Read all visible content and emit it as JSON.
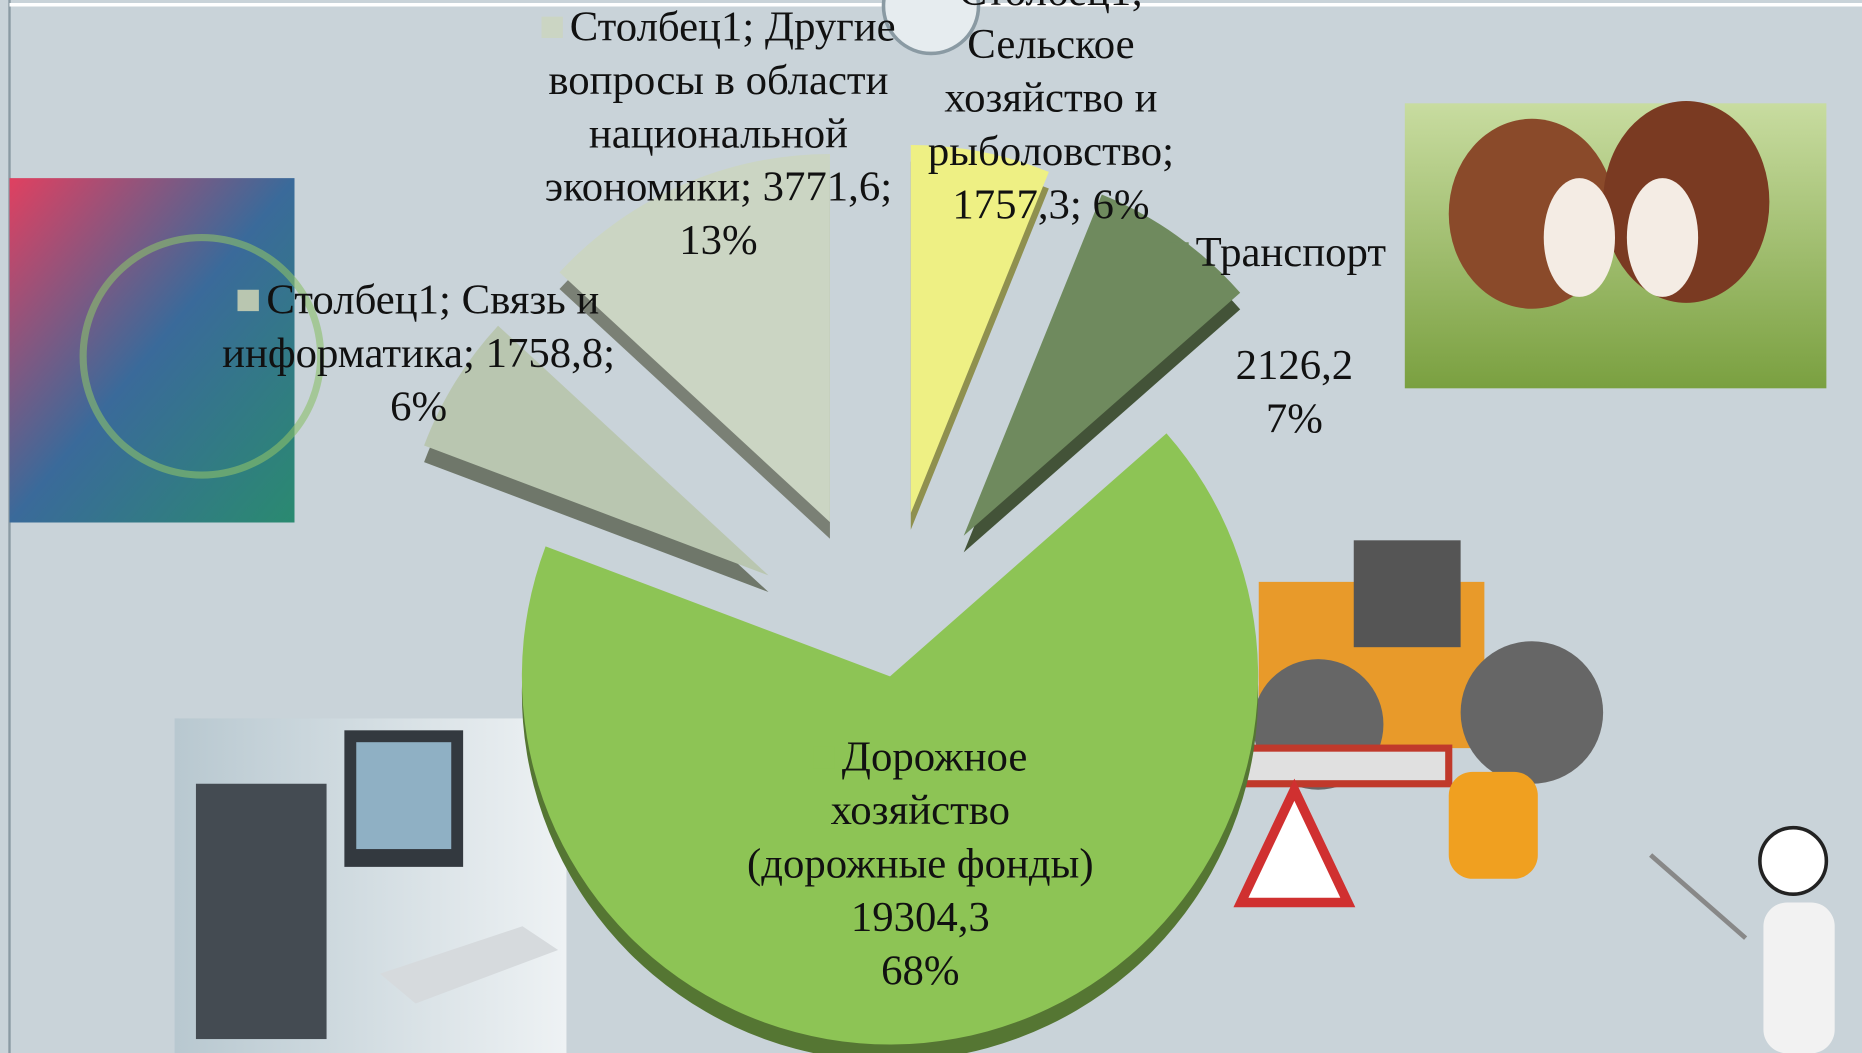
{
  "chart_data": {
    "type": "pie",
    "series_name": "Столбец1",
    "label_separator": "; ",
    "categories": [
      "Сельское хозяйство и рыболовство",
      "Транспорт",
      "Дорожное хозяйство (дорожные фонды)",
      "Связь и информатика",
      "Другие вопросы в области национальной экономики"
    ],
    "values": [
      1757.3,
      2126.2,
      19304.3,
      1758.8,
      3771.6
    ],
    "value_labels": [
      "1757,3",
      "2126,2",
      "19304,3",
      "1758,8",
      "3771,6"
    ],
    "percent_labels": [
      "6%",
      "7%",
      "68%",
      "6%",
      "13%"
    ],
    "series_name_shown": [
      true,
      false,
      false,
      true,
      true
    ],
    "colors": [
      "#eef084",
      "#6f8a5e",
      "#8dc455",
      "#b9c6b0",
      "#cbd5c3"
    ],
    "exploded": true
  }
}
